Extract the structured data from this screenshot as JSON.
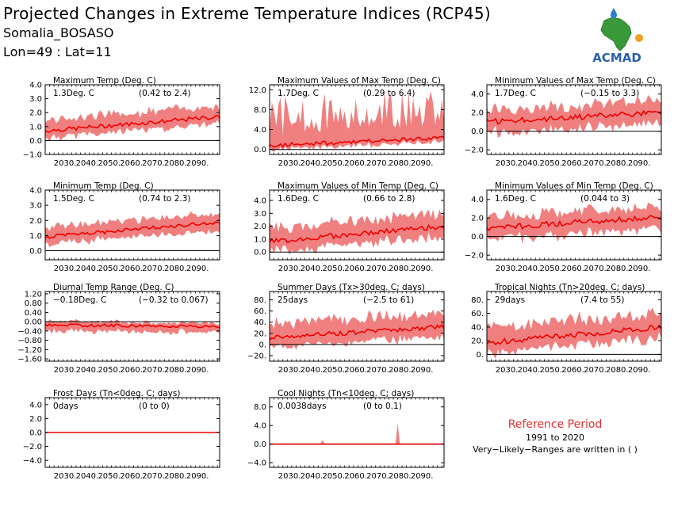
{
  "header": {
    "title": "Projected Changes in Extreme Temperature Indices (RCP45)",
    "location": "Somalia_BOSASO",
    "coords": "Lon=49 : Lat=11"
  },
  "logo": {
    "text": "ACMAD",
    "icon": "africa-map-logo",
    "colors": {
      "africa": "#3a9a3a",
      "text": "#2a5fb0",
      "drop": "#2a7fd0",
      "sun": "#f0a020"
    }
  },
  "reference": {
    "title": "Reference Period",
    "period": "1991 to 2020",
    "note": "Very−Likely−Ranges are written in ( )"
  },
  "colors": {
    "band": "#f08080",
    "line": "#ee0000",
    "zero": "#000000"
  },
  "chart_data": [
    {
      "id": "txmean",
      "type": "area",
      "title": "Maximum Temp (Deg. C)",
      "value": "1.3Deg. C",
      "range": "(0.42 to 2.4)",
      "x": [
        2021,
        2100
      ],
      "xticks": [
        "2030.",
        "2040.",
        "2050.",
        "2060.",
        "2070.",
        "2080.",
        "2090."
      ],
      "ylim": [
        -1,
        4
      ],
      "yticks": [
        "−1.0",
        "0.0",
        "1.0",
        "2.0",
        "3.0",
        "4.0"
      ],
      "ytick_values": [
        -1,
        0,
        1,
        2,
        3,
        4
      ],
      "start": 0.7,
      "end": 1.7,
      "lo_off": -0.5,
      "hi_off": 0.8,
      "noise": 0.15
    },
    {
      "id": "txx",
      "type": "area",
      "title": "Maximum Values of Max Temp (Deg. C)",
      "value": "1.7Deg. C",
      "range": "(0.29 to 6.4)",
      "x": [
        2021,
        2100
      ],
      "xticks": [
        "2030.",
        "2040.",
        "2050.",
        "2060.",
        "2070.",
        "2080.",
        "2090."
      ],
      "ylim": [
        -1,
        13
      ],
      "yticks": [
        "0.0",
        "4.0",
        "8.0",
        "12.0"
      ],
      "ytick_values": [
        0,
        4,
        8,
        12
      ],
      "start": 0.8,
      "end": 2.3,
      "lo_off": -0.8,
      "hi_off": 3.5,
      "noise": 0.4,
      "spiky": true
    },
    {
      "id": "txn",
      "type": "area",
      "title": "Minimum Values of Max Temp (Deg. C)",
      "value": "1.7Deg. C",
      "range": "(−0.15 to 3.3)",
      "x": [
        2021,
        2100
      ],
      "xticks": [
        "2030.",
        "2040.",
        "2050.",
        "2060.",
        "2070.",
        "2080.",
        "2090."
      ],
      "ylim": [
        -2.5,
        5
      ],
      "yticks": [
        "−2.0",
        "0.0",
        "2.0",
        "4.0"
      ],
      "ytick_values": [
        -2,
        0,
        2,
        4
      ],
      "start": 1.0,
      "end": 2.0,
      "lo_off": -1.2,
      "hi_off": 1.3,
      "noise": 0.3
    },
    {
      "id": "tnmean",
      "type": "area",
      "title": "Minimum Temp (Deg. C)",
      "value": "1.5Deg. C",
      "range": "(0.74 to 2.3)",
      "x": [
        2021,
        2100
      ],
      "xticks": [
        "2030.",
        "2040.",
        "2050.",
        "2060.",
        "2070.",
        "2080.",
        "2090."
      ],
      "ylim": [
        -0.6,
        4
      ],
      "yticks": [
        "0.0",
        "1.0",
        "2.0",
        "3.0",
        "4.0"
      ],
      "ytick_values": [
        0,
        1,
        2,
        3,
        4
      ],
      "start": 0.9,
      "end": 1.9,
      "lo_off": -0.5,
      "hi_off": 0.6,
      "noise": 0.12
    },
    {
      "id": "tnx",
      "type": "area",
      "title": "Maximum Values of Min Temp (Deg. C)",
      "value": "1.6Deg. C",
      "range": "(0.66 to 2.8)",
      "x": [
        2021,
        2100
      ],
      "xticks": [
        "2030.",
        "2040.",
        "2050.",
        "2060.",
        "2070.",
        "2080.",
        "2090."
      ],
      "ylim": [
        -0.6,
        4.8
      ],
      "yticks": [
        "0.0",
        "1.0",
        "2.0",
        "3.0",
        "4.0"
      ],
      "ytick_values": [
        0,
        1,
        2,
        3,
        4
      ],
      "start": 0.8,
      "end": 2.0,
      "lo_off": -0.8,
      "hi_off": 1.0,
      "noise": 0.2
    },
    {
      "id": "tnn",
      "type": "area",
      "title": "Minimum Values of Min Temp (Deg. C)",
      "value": "1.6Deg. C",
      "range": "(0.044 to 3)",
      "x": [
        2021,
        2100
      ],
      "xticks": [
        "2030.",
        "2040.",
        "2050.",
        "2060.",
        "2070.",
        "2080.",
        "2090."
      ],
      "ylim": [
        -2.5,
        5
      ],
      "yticks": [
        "−2.0",
        "0.0",
        "2.0",
        "4.0"
      ],
      "ytick_values": [
        -2,
        0,
        2,
        4
      ],
      "start": 0.9,
      "end": 2.1,
      "lo_off": -1.2,
      "hi_off": 1.2,
      "noise": 0.3
    },
    {
      "id": "dtr",
      "type": "area",
      "title": "Diurnal Temp Range (Deg. C)",
      "value": "−0.18Deg. C",
      "range": "(−0.32 to 0.067)",
      "x": [
        2021,
        2100
      ],
      "xticks": [
        "2030.",
        "2040.",
        "2050.",
        "2060.",
        "2070.",
        "2080.",
        "2090."
      ],
      "ylim": [
        -1.7,
        1.3
      ],
      "yticks": [
        "−1.60",
        "−1.20",
        "−0.80",
        "−0.40",
        "0.00",
        "0.40",
        "0.80",
        "1.20"
      ],
      "ytick_values": [
        -1.6,
        -1.2,
        -0.8,
        -0.4,
        0,
        0.4,
        0.8,
        1.2
      ],
      "start": -0.15,
      "end": -0.2,
      "lo_off": -0.25,
      "hi_off": 0.15,
      "noise": 0.06
    },
    {
      "id": "su",
      "type": "area",
      "title": "Summer Days (Tx>30deg. C; days)",
      "value": "25days",
      "range": "(−2.5 to 61)",
      "x": [
        2021,
        2100
      ],
      "xticks": [
        "2030.",
        "2040.",
        "2050.",
        "2060.",
        "2070.",
        "2080.",
        "2090."
      ],
      "ylim": [
        -30,
        95
      ],
      "yticks": [
        "−20.",
        "0.",
        "20.",
        "40.",
        "60.",
        "80."
      ],
      "ytick_values": [
        -20,
        0,
        20,
        40,
        60,
        80
      ],
      "start": 12,
      "end": 32,
      "lo_off": -18,
      "hi_off": 25,
      "noise": 4
    },
    {
      "id": "tr",
      "type": "area",
      "title": "Tropical Nights (Tn>20deg. C; days)",
      "value": "29days",
      "range": "(7.4 to 55)",
      "x": [
        2021,
        2100
      ],
      "xticks": [
        "2030.",
        "2040.",
        "2050.",
        "2060.",
        "2070.",
        "2080.",
        "2090."
      ],
      "ylim": [
        -10,
        92
      ],
      "yticks": [
        "0.",
        "20.",
        "40.",
        "60.",
        "80."
      ],
      "ytick_values": [
        0,
        20,
        40,
        60,
        80
      ],
      "start": 17,
      "end": 40,
      "lo_off": -15,
      "hi_off": 22,
      "noise": 4
    },
    {
      "id": "fd",
      "type": "area",
      "title": "Frost Days (Tn<0deg. C; days)",
      "value": "0days",
      "range": "(0 to 0)",
      "x": [
        2021,
        2100
      ],
      "xticks": [
        "2030.",
        "2040.",
        "2050.",
        "2060.",
        "2070.",
        "2080.",
        "2090."
      ],
      "ylim": [
        -5,
        5
      ],
      "yticks": [
        "−4.0",
        "−2.0",
        "0.0",
        "2.0",
        "4.0"
      ],
      "ytick_values": [
        -4,
        -2,
        0,
        2,
        4
      ],
      "start": 0,
      "end": 0,
      "lo_off": 0,
      "hi_off": 0,
      "noise": 0,
      "flat": true
    },
    {
      "id": "tn10",
      "type": "area",
      "title": "Cool Nights (Tn<10deg. C; days)",
      "value": "0.0038days",
      "range": "(0 to 0.1)",
      "x": [
        2021,
        2100
      ],
      "xticks": [
        "2030.",
        "2040.",
        "2050.",
        "2060.",
        "2070.",
        "2080.",
        "2090."
      ],
      "ylim": [
        -5,
        10
      ],
      "yticks": [
        "−4.0",
        "0.0",
        "4.0",
        "8.0"
      ],
      "ytick_values": [
        -4,
        0,
        4,
        8
      ],
      "start": 0,
      "end": 0,
      "lo_off": 0,
      "hi_off": 0,
      "noise": 0,
      "flat": true,
      "spikes": [
        {
          "x": 2045,
          "y": 0.9
        },
        {
          "x": 2079,
          "y": 4.5
        }
      ]
    }
  ]
}
